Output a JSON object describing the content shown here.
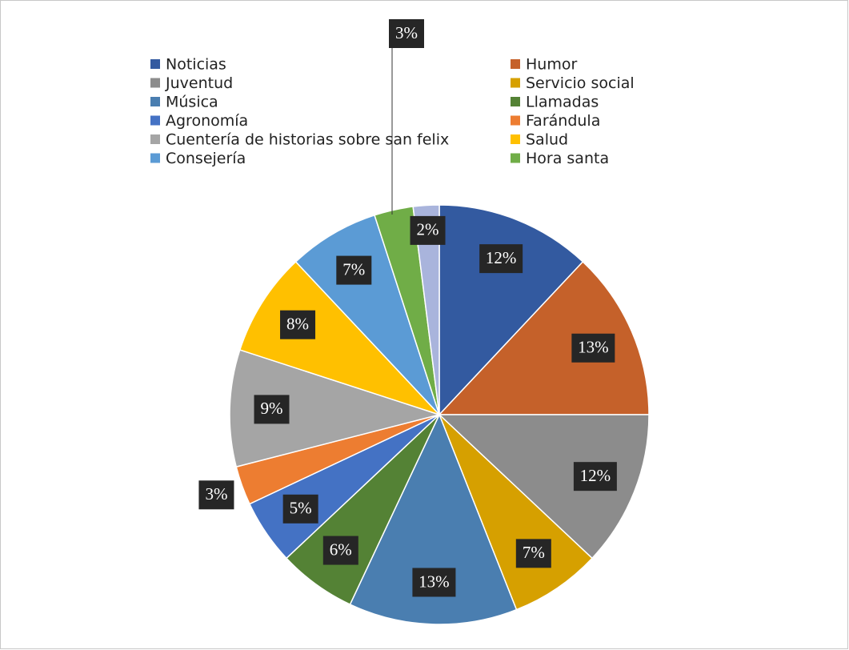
{
  "chart_data": {
    "type": "pie",
    "categories": [
      "Noticias",
      "Humor",
      "Juventud",
      "Servicio social",
      "Música",
      "Llamadas",
      "Agronomía",
      "Farándula",
      "Cuentería de historias sobre san felix",
      "Salud",
      "Consejería",
      "Hora santa",
      null
    ],
    "values": [
      12,
      13,
      12,
      7,
      13,
      6,
      5,
      3,
      9,
      8,
      7,
      3,
      2
    ],
    "value_labels": [
      "12%",
      "13%",
      "12%",
      "7%",
      "13%",
      "6%",
      "5%",
      "3%",
      "9%",
      "8%",
      "7%",
      "3%",
      "2%"
    ],
    "colors": [
      "#335aa0",
      "#c5612a",
      "#8c8c8c",
      "#d6a000",
      "#4a7eb0",
      "#548235",
      "#4472c4",
      "#ed7d31",
      "#a5a5a5",
      "#ffc000",
      "#5b9bd5",
      "#70ad47",
      "#a9b4dc"
    ],
    "legend": "top"
  }
}
